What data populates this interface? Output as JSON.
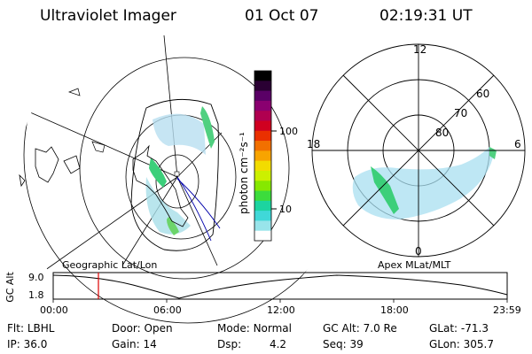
{
  "header": {
    "instrument": "Ultraviolet Imager",
    "date": "01 Oct 07",
    "time": "02:19:31 UT"
  },
  "colorbar": {
    "unit": "photon cm⁻²s⁻¹",
    "ticks": [
      "100",
      "10"
    ],
    "colors": [
      "#000000",
      "#2a0033",
      "#5a0066",
      "#8a0070",
      "#b00050",
      "#d00020",
      "#ea3000",
      "#f27000",
      "#f8a400",
      "#f2dc00",
      "#ccf000",
      "#86e800",
      "#3cdc3c",
      "#1cd4a0",
      "#40d8d8",
      "#98e4ea",
      "#ffffff"
    ]
  },
  "left_panel": {
    "caption": "Geographic Lat/Lon",
    "projection": "geographic",
    "grid_color": "#000000",
    "orbit_color": "#0000aa"
  },
  "right_panel": {
    "caption": "Apex MLat/MLT",
    "mlt_labels": [
      "12",
      "18",
      "6",
      "0"
    ],
    "lat_labels": [
      "60",
      "70",
      "80"
    ]
  },
  "timeline": {
    "axis_label": "GC Alt",
    "y_ticks": [
      "9.0",
      "1.8"
    ],
    "x_ticks": [
      "00:00",
      "06:00",
      "12:00",
      "18:00",
      "23:59"
    ],
    "marker_color": "#dd0000"
  },
  "status": {
    "row1": [
      {
        "label": "Flt:",
        "value": "LBHL"
      },
      {
        "label": "Door:",
        "value": "Open"
      },
      {
        "label": "Mode:",
        "value": "Normal"
      },
      {
        "label": "GC Alt:",
        "value": "7.0 Re"
      },
      {
        "label": "GLat:",
        "value": "-71.3"
      }
    ],
    "row2": [
      {
        "label": "IP:",
        "value": "36.0"
      },
      {
        "label": "Gain:",
        "value": "14"
      },
      {
        "label": "Dsp:",
        "value": "4.2"
      },
      {
        "label": "Seq:",
        "value": "39"
      },
      {
        "label": "GLon:",
        "value": "305.7"
      }
    ]
  }
}
